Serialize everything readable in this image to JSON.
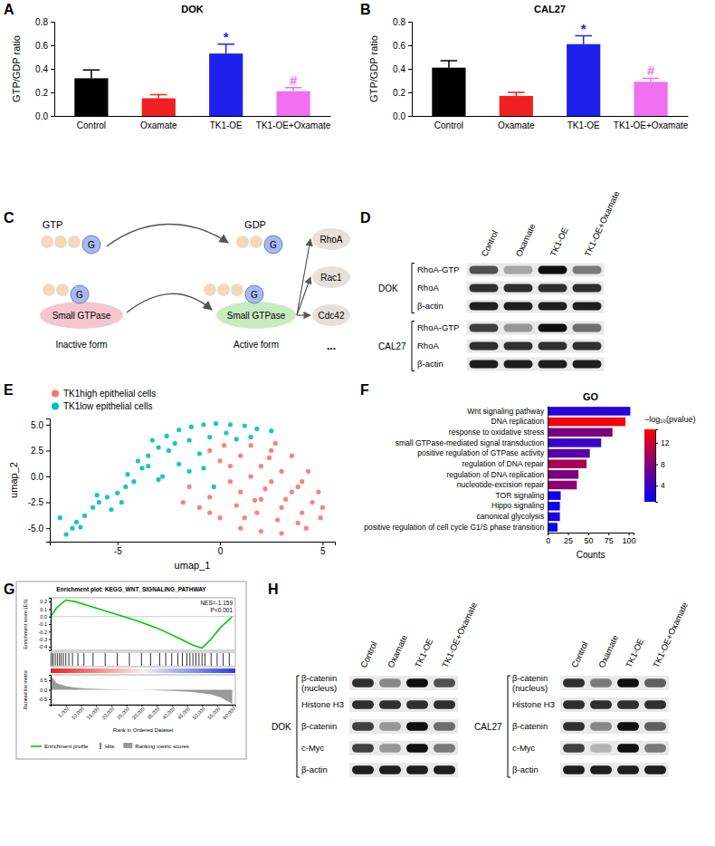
{
  "panel_labels": [
    "A",
    "B",
    "C",
    "D",
    "E",
    "F",
    "G",
    "H"
  ],
  "chart_data": [
    {
      "type": "bar",
      "title": "DOK",
      "y_label": "GTP/GDP ratio",
      "categories": [
        "Control",
        "Oxamate",
        "TK1-OE",
        "TK1-OE+Oxamate"
      ],
      "values": [
        0.32,
        0.15,
        0.53,
        0.21
      ],
      "errors": [
        0.07,
        0.03,
        0.08,
        0.03
      ],
      "colors": [
        "#000000",
        "#ee2020",
        "#2020ee",
        "#f070f0"
      ],
      "annotations": [
        null,
        null,
        "*",
        "#"
      ],
      "ylim": [
        0,
        0.8
      ],
      "yticks": [
        {
          "value": 0,
          "label": "0.0"
        },
        0.2,
        0.4,
        0.6,
        0.8
      ]
    },
    {
      "type": "bar",
      "title": "CAL27",
      "y_label": "GTP/GDP ratio",
      "categories": [
        "Control",
        "Oxamate",
        "TK1-OE",
        "TK1-OE+Oxamate"
      ],
      "values": [
        0.41,
        0.17,
        0.61,
        0.29
      ],
      "errors": [
        0.06,
        0.03,
        0.07,
        0.03
      ],
      "colors": [
        "#000000",
        "#ee2020",
        "#2020ee",
        "#f070f0"
      ],
      "annotations": [
        null,
        null,
        "*",
        "#"
      ],
      "ylim": [
        0,
        0.8
      ],
      "yticks": [
        {
          "value": 0,
          "label": "0.0"
        },
        0.2,
        0.4,
        0.6,
        0.8
      ]
    },
    {
      "type": "scatter",
      "x_label": "umap_1",
      "y_label": "umap_2",
      "legend": "top-left",
      "xlim": [
        -8.3,
        5.6
      ],
      "ylim": [
        -6.3,
        5.6
      ],
      "xticks": [
        -5,
        0,
        5
      ],
      "yticks": [
        {
          "value": -5,
          "label": "-5.0"
        },
        -2.5,
        {
          "value": 0,
          "label": "0.0"
        },
        2.5,
        {
          "value": 5,
          "label": "5.0"
        }
      ],
      "series": [
        {
          "name": "TK1high epithelial cells",
          "color": "#f8766d",
          "x": [
            1.0,
            2.0,
            3.0,
            4.0,
            4.5,
            3.5,
            2.5,
            1.5,
            0.5,
            0.0,
            1.0,
            2.0,
            3.0,
            4.0,
            4.8,
            3.8,
            2.8,
            1.8,
            0.8,
            -0.5,
            -1.0,
            0.0,
            1.0,
            2.0,
            3.0,
            4.2,
            4.9,
            5.0,
            3.5,
            2.5,
            1.5,
            -0.5,
            -1.5,
            0.5,
            2.2,
            3.2,
            1.2,
            -0.5,
            4.3,
            2.7,
            0.2,
            1.7,
            3.8,
            -1.8,
            2.4
          ],
          "values": [
            -1.5,
            -2.2,
            -3.0,
            -3.5,
            -2.5,
            -1.5,
            -0.5,
            0.0,
            -0.5,
            1.5,
            2.0,
            1.0,
            0.5,
            -0.5,
            -1.5,
            -4.5,
            -4.2,
            -3.5,
            -2.8,
            -2.0,
            -3.0,
            -4.0,
            -5.0,
            -5.3,
            -5.5,
            -5.0,
            -4.0,
            -3.0,
            2.0,
            2.5,
            3.0,
            2.5,
            -1.0,
            1.0,
            -1.2,
            -2.2,
            -4.0,
            -3.5,
            0.5,
            3.2,
            3.0,
            -2.3,
            -1.0,
            -2.5,
            1.8
          ]
        },
        {
          "name": "TK1low epithelial cells",
          "color": "#00bfc4",
          "x": [
            -7.5,
            -7.2,
            -7.0,
            -6.6,
            -6.2,
            -5.9,
            -5.5,
            -5.0,
            -4.6,
            -4.2,
            -4.5,
            -3.8,
            -4.0,
            -3.5,
            -3.0,
            -3.3,
            -2.6,
            -2.0,
            -1.4,
            -0.8,
            -0.2,
            0.5,
            1.2,
            1.8,
            2.5,
            -1.5,
            -0.5,
            0.3,
            -2.5,
            -2.0,
            -1.5,
            -0.8,
            -3.0,
            -5.3,
            -6.8,
            -4.8,
            -2.2,
            0.8,
            -1.0,
            -3.5,
            -2.8,
            1.5,
            -0.3,
            -7.8,
            -6.0
          ],
          "values": [
            -5.6,
            -5.0,
            -4.4,
            -3.8,
            -3.0,
            -2.5,
            -2.0,
            -1.6,
            -1.0,
            -0.5,
            0.2,
            0.8,
            1.5,
            2.0,
            2.8,
            3.5,
            3.9,
            4.5,
            4.8,
            5.0,
            5.1,
            5.0,
            4.9,
            4.6,
            4.4,
            3.5,
            3.8,
            4.2,
            2.5,
            1.2,
            0.5,
            0.8,
            -0.3,
            -3.2,
            -4.9,
            -2.5,
            3.2,
            3.6,
            2.2,
            1.0,
            0.0,
            3.8,
            -1.0,
            -4.0,
            -1.8
          ]
        }
      ]
    },
    {
      "type": "bar",
      "orientation": "horizontal",
      "title": "GO",
      "x_label": "Counts",
      "categories": [
        "Wnt signaling pathway",
        "DNA replication",
        "response to oxidative stress",
        "small GTPase-mediated signal transduction",
        "positive regulation of GTPase activity",
        "regulation of DNA repair",
        "regulation of DNA replication",
        "nucleotide-excision repair",
        "TOR signaling",
        "Hippo signaling",
        "canonical glycolysis",
        "positive regulation of cell cycle G1/S phase transition"
      ],
      "values": [
        102,
        96,
        80,
        66,
        52,
        48,
        38,
        36,
        16,
        15,
        15,
        12
      ],
      "neg_log10_p": [
        3,
        14,
        7.5,
        4,
        5.5,
        10,
        7.5,
        8.5,
        2,
        2,
        2.5,
        1.5
      ],
      "colorbar": {
        "label": "−log₁₀(pvalue)",
        "range": [
          1,
          14.5
        ],
        "ticks": [
          4,
          8,
          12
        ],
        "colors": [
          "#0000ff",
          "#ff0000"
        ]
      },
      "xlim": [
        0,
        106
      ],
      "xticks": [
        0,
        25,
        50,
        75,
        100
      ]
    },
    {
      "type": "line",
      "title": "Enrichment plot: KEGG_WNT_SIGNALING_PATHWAY",
      "annotations": [
        "NES=-1.159",
        "P<0.001"
      ],
      "x_label": "Rank in Ordered Dataset",
      "y_label": "Enrichment score (ES)",
      "y2_label": "Ranked list metric",
      "x": [
        0,
        2000,
        5000,
        8000,
        12000,
        20000,
        28000,
        35000,
        42000,
        47000,
        50000,
        53000,
        56000,
        60000
      ],
      "series": [
        {
          "name": "Enrichment profile",
          "color": "#00cc00",
          "values": [
            0,
            0.12,
            0.22,
            0.2,
            0.15,
            0.05,
            -0.05,
            -0.15,
            -0.28,
            -0.38,
            -0.42,
            -0.3,
            -0.15,
            0
          ]
        },
        {
          "name": "Ranking metric scores",
          "color": "#9a9a9a",
          "axis": "y2",
          "type": "area",
          "values": [
            0.75,
            0.35,
            0.2,
            0.12,
            0.06,
            0.02,
            0,
            -0.03,
            -0.07,
            -0.12,
            -0.18,
            -0.26,
            -0.4,
            -0.75
          ]
        }
      ],
      "hits": {
        "name": "Hits",
        "color": "#000000",
        "x": [
          300,
          800,
          1500,
          2200,
          2900,
          3500,
          4200,
          5000,
          6000,
          7200,
          9000,
          11000,
          14000,
          18000,
          22000,
          26000,
          30000,
          33000,
          36000,
          38000,
          40000,
          42000,
          43500,
          45000,
          46000,
          47000,
          48000,
          49000,
          50000,
          51000,
          53000,
          55000,
          57000,
          59000
        ]
      },
      "xlim": [
        0,
        61000
      ],
      "xticks": [
        {
          "value": 5000,
          "label": "5,000"
        },
        {
          "value": 10000,
          "label": "10,000"
        },
        {
          "value": 15000,
          "label": "15,000"
        },
        {
          "value": 20000,
          "label": "20,000"
        },
        {
          "value": 25000,
          "label": "25,000"
        },
        {
          "value": 30000,
          "label": "30,000"
        },
        {
          "value": 35000,
          "label": "35,000"
        },
        {
          "value": 40000,
          "label": "40,000"
        },
        {
          "value": 45000,
          "label": "45,000"
        },
        {
          "value": 50000,
          "label": "50,000"
        },
        {
          "value": 55000,
          "label": "55,000"
        },
        {
          "value": 60000,
          "label": "60,000"
        }
      ],
      "ylim": [
        -0.45,
        0.25
      ],
      "yticks": [
        -0.4,
        -0.3,
        -0.2,
        -0.1,
        {
          "value": 0,
          "label": "0.0"
        },
        0.1,
        0.2
      ],
      "y2lim": [
        -0.8,
        0.8
      ],
      "y2ticks": [
        -0.5,
        {
          "value": 0,
          "label": "0.0"
        },
        0.5
      ]
    }
  ],
  "diagram_c": {
    "gtp": "GTP",
    "gdp": "GDP",
    "g": "G",
    "gtpase": "Small GTPase",
    "inactive": "Inactive form",
    "active": "Active form",
    "effectors": [
      "RhoA",
      "Rac1",
      "Cdc42",
      "..."
    ]
  },
  "blot_d": {
    "columns": [
      "Control",
      "Oxamate",
      "TK1-OE",
      "TK1-OE+Oxamate"
    ],
    "groups": [
      {
        "name": "DOK",
        "rows": [
          {
            "label": "RhoA-GTP",
            "intensity": [
              0.75,
              0.45,
              0.95,
              0.6
            ]
          },
          {
            "label": "RhoA",
            "intensity": [
              0.85,
              0.85,
              0.85,
              0.85
            ]
          },
          {
            "label": "β-actin",
            "intensity": [
              0.9,
              0.9,
              0.9,
              0.9
            ]
          }
        ]
      },
      {
        "name": "CAL27",
        "rows": [
          {
            "label": "RhoA-GTP",
            "intensity": [
              0.8,
              0.5,
              0.95,
              0.65
            ]
          },
          {
            "label": "RhoA",
            "intensity": [
              0.85,
              0.85,
              0.85,
              0.85
            ]
          },
          {
            "label": "β-actin",
            "intensity": [
              0.9,
              0.9,
              0.9,
              0.9
            ]
          }
        ]
      }
    ]
  },
  "blot_h": {
    "columns": [
      "Control",
      "Oxamate",
      "TK1-OE",
      "TK1-OE+Oxamate"
    ],
    "groups": [
      {
        "name": "DOK",
        "rows": [
          {
            "label": "β-catenin (nucleus)",
            "intensity": [
              0.85,
              0.55,
              0.95,
              0.75
            ]
          },
          {
            "label": "Histone H3",
            "intensity": [
              0.85,
              0.85,
              0.85,
              0.85
            ]
          },
          {
            "label": "β-catenin",
            "intensity": [
              0.8,
              0.5,
              0.95,
              0.65
            ]
          },
          {
            "label": "c-Myc",
            "intensity": [
              0.8,
              0.5,
              0.95,
              0.6
            ]
          },
          {
            "label": "β-actin",
            "intensity": [
              0.9,
              0.9,
              0.9,
              0.9
            ]
          }
        ]
      },
      {
        "name": "CAL27",
        "rows": [
          {
            "label": "β-catenin (nucleus)",
            "intensity": [
              0.85,
              0.6,
              0.95,
              0.7
            ]
          },
          {
            "label": "Histone H3",
            "intensity": [
              0.85,
              0.85,
              0.85,
              0.85
            ]
          },
          {
            "label": "β-catenin",
            "intensity": [
              0.85,
              0.55,
              0.95,
              0.7
            ]
          },
          {
            "label": "c-Myc",
            "intensity": [
              0.8,
              0.4,
              0.95,
              0.6
            ]
          },
          {
            "label": "β-actin",
            "intensity": [
              0.9,
              0.9,
              0.9,
              0.9
            ]
          }
        ]
      }
    ]
  }
}
